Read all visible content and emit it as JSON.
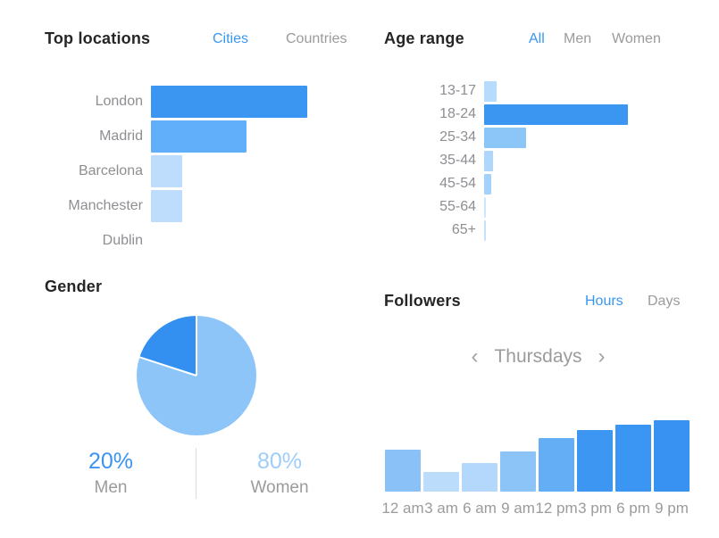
{
  "colors": {
    "accent_blue": "#3897f0",
    "inactive_tab_gray": "#9b9b9b",
    "heading_dark": "#262626",
    "axis_label_gray": "#8e8e93",
    "divider_gray": "#dcdcdc"
  },
  "top_locations": {
    "title": "Top locations",
    "tabs": [
      "Cities",
      "Countries"
    ],
    "active_tab": "Cities"
  },
  "age_range": {
    "title": "Age range",
    "tabs": [
      "All",
      "Men",
      "Women"
    ],
    "active_tab": "All"
  },
  "gender": {
    "title": "Gender",
    "stats": [
      {
        "value": "20%",
        "label": "Men",
        "value_color": "#3b94ef"
      },
      {
        "value": "80%",
        "label": "Women",
        "value_color": "#9fcdf9"
      }
    ]
  },
  "followers": {
    "title": "Followers",
    "tabs": [
      "Hours",
      "Days"
    ],
    "active_tab": "Hours",
    "day_selector": {
      "prev": "‹",
      "label": "Thursdays",
      "next": "›"
    }
  },
  "chart_data": [
    {
      "id": "top_locations",
      "type": "bar",
      "orientation": "horizontal",
      "title": "Top locations (Cities)",
      "categories": [
        "London",
        "Madrid",
        "Barcelona",
        "Manchester",
        "Dublin"
      ],
      "values": [
        100,
        61,
        20,
        20,
        0
      ],
      "values_note": "no numeric labels shown; values are percent of longest bar",
      "bar_colors": [
        "#3b96f2",
        "#61aefa",
        "#bedcfc",
        "#bedcfc",
        "#bedcfc"
      ],
      "grid": false,
      "legend": false
    },
    {
      "id": "age_range",
      "type": "bar",
      "orientation": "horizontal",
      "title": "Age range (All)",
      "categories": [
        "13-17",
        "18-24",
        "25-34",
        "35-44",
        "45-54",
        "55-64",
        "65+"
      ],
      "values": [
        9,
        100,
        29,
        6,
        5,
        1,
        1
      ],
      "values_note": "no numeric labels shown; values are percent of longest bar",
      "bar_colors": [
        "#b7dbfc",
        "#3b96f2",
        "#8cc5f8",
        "#aed7fb",
        "#a5d2fa",
        "#cfe6fd",
        "#c4e0fc"
      ],
      "grid": false,
      "legend": false
    },
    {
      "id": "gender",
      "type": "pie",
      "title": "Gender",
      "slices": [
        {
          "label": "Men",
          "value": 20,
          "color": "#3390f0"
        },
        {
          "label": "Women",
          "value": 80,
          "color": "#8ec5f9"
        }
      ],
      "start": "Women slice starts at 12 o'clock clockwise; Men slice fills from 288deg to 360deg",
      "legend": false
    },
    {
      "id": "followers_by_hour",
      "type": "bar",
      "orientation": "vertical",
      "title": "Followers (Hours, Thursdays)",
      "categories": [
        "12 am",
        "3 am",
        "6 am",
        "9 am",
        "12 pm",
        "3 pm",
        "6 pm",
        "9 pm"
      ],
      "values": [
        59,
        28,
        40,
        56,
        75,
        86,
        94,
        100
      ],
      "values_note": "no y-axis shown; values are percent of tallest bar",
      "bar_colors": [
        "#8ac2f8",
        "#bcdcfc",
        "#b3d8fb",
        "#8cc4f8",
        "#64aef5",
        "#3d97f2",
        "#3b95f2",
        "#3892f1"
      ],
      "grid": false,
      "legend": false
    }
  ]
}
